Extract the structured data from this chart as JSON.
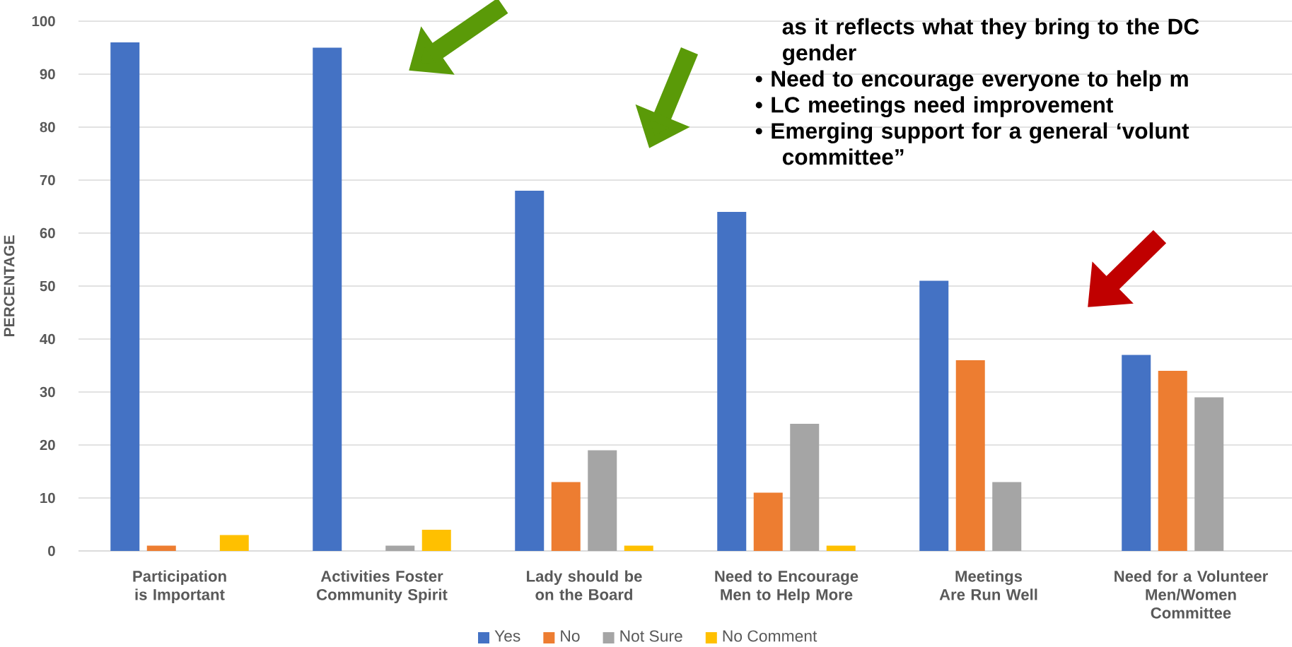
{
  "chart_data": {
    "type": "bar",
    "ylabel": "PERCENTAGE",
    "categories": [
      "Participation is Important",
      "Activities Foster Community Spirit",
      "Lady should be on the Board",
      "Need to Encourage Men to Help More",
      "Meetings Are Run Well",
      "Need for a Volunteer Men/Women Committee"
    ],
    "series": [
      {
        "name": "Yes",
        "color": "#4472c4",
        "values": [
          96,
          95,
          68,
          64,
          51,
          37
        ]
      },
      {
        "name": "No",
        "color": "#ed7d31",
        "values": [
          1,
          null,
          13,
          11,
          36,
          34
        ]
      },
      {
        "name": "Not Sure",
        "color": "#a5a5a5",
        "values": [
          null,
          1,
          19,
          24,
          13,
          29
        ]
      },
      {
        "name": "No Comment",
        "color": "#ffc000",
        "values": [
          3,
          4,
          1,
          1,
          null,
          null
        ]
      }
    ],
    "ylim": [
      0,
      100
    ],
    "yticks": [
      0,
      10,
      20,
      30,
      40,
      50,
      60,
      70,
      80,
      90,
      100
    ],
    "grid": "y",
    "legend": "bottom",
    "annotations": [
      "as it reflects what they bring to the DC gender",
      "• Need to encourage everyone to help m",
      "• LC meetings need  improvement",
      "• Emerging support for a general ‘volunt committee”"
    ]
  }
}
